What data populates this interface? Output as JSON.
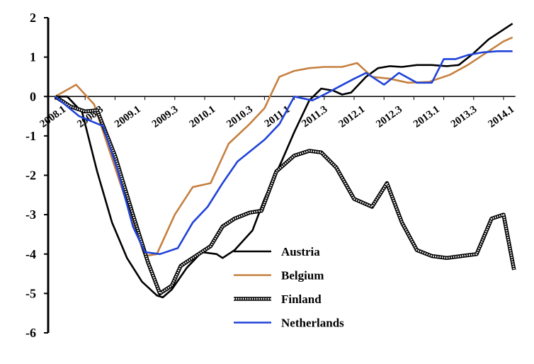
{
  "chart_data": {
    "type": "line",
    "title": "",
    "xlabel": "",
    "ylabel": "",
    "ylim": [
      -6,
      2
    ],
    "yticks": [
      2,
      1,
      0,
      -1,
      -2,
      -3,
      -4,
      -5,
      -6
    ],
    "x_tick_labels": [
      "2008.1",
      "2008.3",
      "2009.1",
      "2009.3",
      "2010.1",
      "2010.3",
      "2011.1",
      "2011.3",
      "2012.1",
      "2012.3",
      "2013.1",
      "2013.3",
      "2014.1"
    ],
    "legend_position": "center-bottom",
    "grid": false,
    "series": [
      {
        "name": "Austria",
        "color": "#000000",
        "style": "solid",
        "points": [
          [
            0,
            0
          ],
          [
            0.4,
            0
          ],
          [
            0.9,
            -0.4
          ],
          [
            1.4,
            -1.9
          ],
          [
            1.9,
            -3.2
          ],
          [
            2.4,
            -4.1
          ],
          [
            2.9,
            -4.7
          ],
          [
            3.4,
            -5.05
          ],
          [
            3.6,
            -5.1
          ],
          [
            3.9,
            -4.9
          ],
          [
            4.4,
            -4.35
          ],
          [
            4.9,
            -3.95
          ],
          [
            5.4,
            -4.0
          ],
          [
            5.6,
            -4.1
          ],
          [
            6.0,
            -3.9
          ],
          [
            6.6,
            -3.4
          ],
          [
            7.0,
            -2.6
          ],
          [
            7.6,
            -1.6
          ],
          [
            8.0,
            -0.9
          ],
          [
            8.5,
            -0.1
          ],
          [
            8.9,
            0.2
          ],
          [
            9.3,
            0.15
          ],
          [
            9.6,
            0.05
          ],
          [
            9.9,
            0.1
          ],
          [
            10.4,
            0.5
          ],
          [
            10.8,
            0.72
          ],
          [
            11.2,
            0.77
          ],
          [
            11.6,
            0.75
          ],
          [
            12.1,
            0.8
          ],
          [
            12.6,
            0.8
          ],
          [
            13.1,
            0.77
          ],
          [
            13.5,
            0.8
          ],
          [
            14.0,
            1.1
          ],
          [
            14.5,
            1.45
          ],
          [
            15.0,
            1.7
          ],
          [
            15.3,
            1.85
          ]
        ]
      },
      {
        "name": "Belgium",
        "color": "#c5803f",
        "style": "solid",
        "points": [
          [
            0,
            0
          ],
          [
            0.7,
            0.3
          ],
          [
            1.3,
            -0.2
          ],
          [
            2.0,
            -1.8
          ],
          [
            2.7,
            -3.4
          ],
          [
            3.0,
            -4.05
          ],
          [
            3.4,
            -4.0
          ],
          [
            4.0,
            -3.0
          ],
          [
            4.6,
            -2.3
          ],
          [
            5.2,
            -2.2
          ],
          [
            5.8,
            -1.2
          ],
          [
            6.5,
            -0.7
          ],
          [
            7.0,
            -0.3
          ],
          [
            7.5,
            0.5
          ],
          [
            8.0,
            0.65
          ],
          [
            8.5,
            0.72
          ],
          [
            9.0,
            0.75
          ],
          [
            9.6,
            0.75
          ],
          [
            10.1,
            0.85
          ],
          [
            10.6,
            0.5
          ],
          [
            11.2,
            0.45
          ],
          [
            11.8,
            0.35
          ],
          [
            12.5,
            0.37
          ],
          [
            13.2,
            0.55
          ],
          [
            13.8,
            0.8
          ],
          [
            14.4,
            1.1
          ],
          [
            15.0,
            1.4
          ],
          [
            15.3,
            1.5
          ]
        ]
      },
      {
        "name": "Finland",
        "color": "#000000",
        "style": "checkered",
        "points": [
          [
            0,
            0
          ],
          [
            0.5,
            -0.25
          ],
          [
            1.0,
            -0.38
          ],
          [
            1.4,
            -0.35
          ],
          [
            2.0,
            -1.5
          ],
          [
            2.6,
            -3.0
          ],
          [
            3.1,
            -4.2
          ],
          [
            3.5,
            -5.0
          ],
          [
            3.9,
            -4.8
          ],
          [
            4.2,
            -4.3
          ],
          [
            4.7,
            -4.05
          ],
          [
            5.2,
            -3.8
          ],
          [
            5.6,
            -3.3
          ],
          [
            6.0,
            -3.1
          ],
          [
            6.5,
            -2.95
          ],
          [
            6.9,
            -2.9
          ],
          [
            7.4,
            -1.9
          ],
          [
            8.0,
            -1.5
          ],
          [
            8.5,
            -1.38
          ],
          [
            8.9,
            -1.42
          ],
          [
            9.4,
            -1.8
          ],
          [
            10.0,
            -2.6
          ],
          [
            10.6,
            -2.8
          ],
          [
            11.1,
            -2.2
          ],
          [
            11.6,
            -3.2
          ],
          [
            12.1,
            -3.9
          ],
          [
            12.6,
            -4.05
          ],
          [
            13.1,
            -4.1
          ],
          [
            13.6,
            -4.05
          ],
          [
            14.1,
            -4.0
          ],
          [
            14.6,
            -3.1
          ],
          [
            15.0,
            -3.0
          ],
          [
            15.35,
            -4.4
          ]
        ]
      },
      {
        "name": "Netherlands",
        "color": "#1f43d8",
        "style": "solid",
        "points": [
          [
            0,
            0
          ],
          [
            0.8,
            -0.5
          ],
          [
            1.6,
            -0.75
          ],
          [
            2.1,
            -1.9
          ],
          [
            2.6,
            -3.3
          ],
          [
            3.0,
            -3.95
          ],
          [
            3.5,
            -4.0
          ],
          [
            4.1,
            -3.85
          ],
          [
            4.6,
            -3.2
          ],
          [
            5.1,
            -2.8
          ],
          [
            5.6,
            -2.2
          ],
          [
            6.1,
            -1.65
          ],
          [
            7.0,
            -1.1
          ],
          [
            7.5,
            -0.7
          ],
          [
            8.0,
            0.0
          ],
          [
            8.6,
            -0.1
          ],
          [
            9.0,
            0.05
          ],
          [
            9.5,
            0.25
          ],
          [
            10.0,
            0.45
          ],
          [
            10.4,
            0.6
          ],
          [
            11.0,
            0.3
          ],
          [
            11.5,
            0.6
          ],
          [
            12.1,
            0.35
          ],
          [
            12.6,
            0.35
          ],
          [
            13.0,
            0.95
          ],
          [
            13.4,
            0.95
          ],
          [
            13.8,
            1.05
          ],
          [
            14.3,
            1.12
          ],
          [
            14.8,
            1.15
          ],
          [
            15.3,
            1.15
          ]
        ]
      }
    ]
  }
}
